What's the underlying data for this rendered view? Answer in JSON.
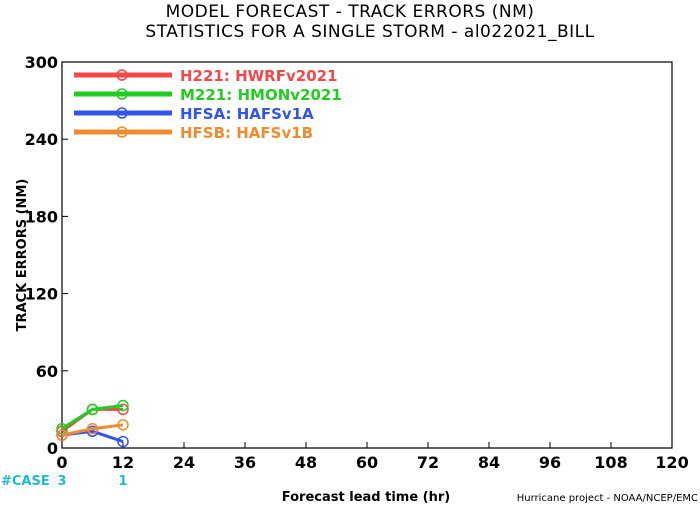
{
  "title_line1": "MODEL FORECAST - TRACK ERRORS (NM)",
  "title_line2": "STATISTICS FOR A SINGLE STORM - al022021_BILL",
  "credit": "Hurricane project - NOAA/NCEP/EMC",
  "case_label": "#CASE",
  "case_counts": [
    {
      "x": 0,
      "count": "3"
    },
    {
      "x": 12,
      "count": "1"
    }
  ],
  "colors": {
    "case": "#22bbcc",
    "axis": "#000000"
  },
  "chart_data": {
    "type": "line",
    "xlabel": "Forecast lead time (hr)",
    "ylabel": "TRACK ERRORS (NM)",
    "xlim": [
      0,
      120
    ],
    "ylim": [
      0,
      300
    ],
    "xticks": [
      "0",
      "12",
      "24",
      "36",
      "48",
      "60",
      "72",
      "84",
      "96",
      "108",
      "120"
    ],
    "yticks": [
      "0",
      "60",
      "120",
      "180",
      "240",
      "300"
    ],
    "legend_position": "top-left",
    "grid": false,
    "series": [
      {
        "name": "H221: HWRFv2021",
        "color": "#f24848",
        "x": [
          0,
          6,
          12
        ],
        "y": [
          13,
          30,
          30
        ]
      },
      {
        "name": "M221: HMONv2021",
        "color": "#22cc22",
        "x": [
          0,
          6,
          12
        ],
        "y": [
          15,
          30,
          33
        ]
      },
      {
        "name": "HFSA: HAFSv1A",
        "color": "#3355ee",
        "x": [
          0,
          6,
          12
        ],
        "y": [
          10,
          13,
          5
        ]
      },
      {
        "name": "HFSB: HAFSv1B",
        "color": "#f08c30",
        "x": [
          0,
          6,
          12
        ],
        "y": [
          10,
          15,
          18
        ]
      }
    ]
  }
}
